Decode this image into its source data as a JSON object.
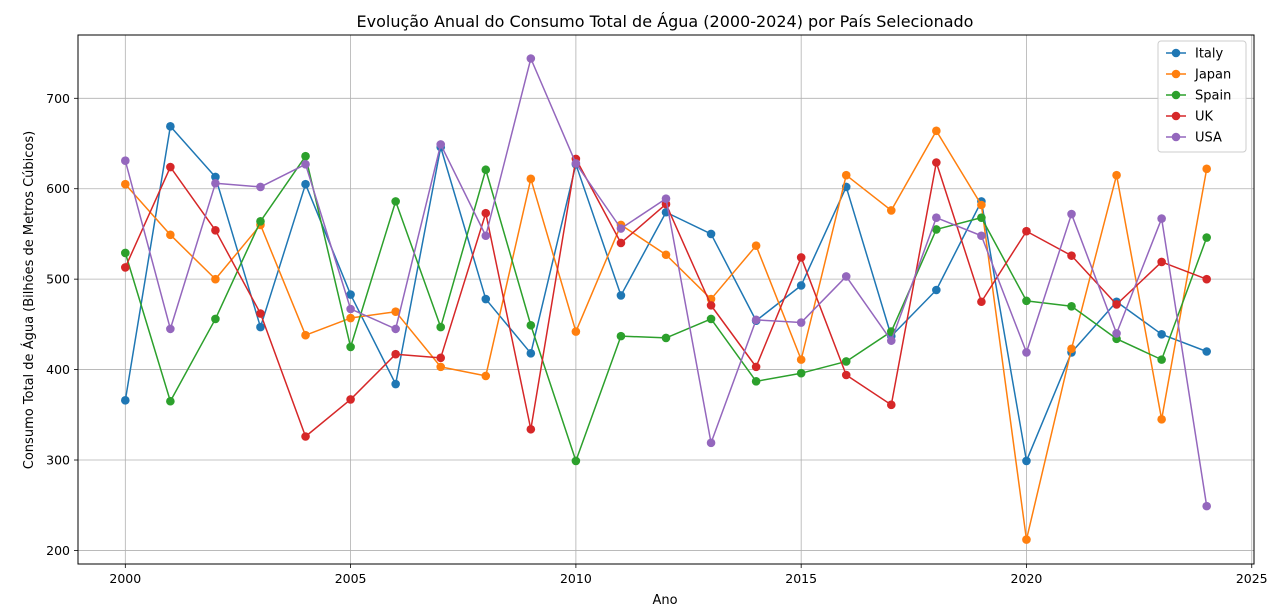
{
  "chart_data": {
    "type": "line",
    "title": "Evolução Anual do Consumo Total de Água (2000-2024) por País Selecionado",
    "xlabel": "Ano",
    "ylabel": "Consumo Total de Água (Bilhões de Metros Cúbicos)",
    "xlim": [
      1998.95,
      2025.05
    ],
    "ylim": [
      185,
      770
    ],
    "xticks": [
      2000,
      2005,
      2010,
      2015,
      2020,
      2025
    ],
    "yticks": [
      200,
      300,
      400,
      500,
      600,
      700
    ],
    "grid": true,
    "legend_position": "top-right",
    "x": [
      2000,
      2001,
      2002,
      2003,
      2004,
      2005,
      2006,
      2007,
      2008,
      2009,
      2010,
      2011,
      2012,
      2013,
      2014,
      2015,
      2016,
      2017,
      2018,
      2019,
      2020,
      2021,
      2022,
      2023,
      2024
    ],
    "series": [
      {
        "name": "Italy",
        "color": "#1f77b4",
        "values": [
          366,
          669,
          613,
          447,
          605,
          483,
          384,
          646,
          478,
          418,
          627,
          482,
          574,
          550,
          454,
          493,
          602,
          437,
          488,
          586,
          299,
          419,
          475,
          439,
          420
        ]
      },
      {
        "name": "Japan",
        "color": "#ff7f0e",
        "values": [
          605,
          549,
          500,
          560,
          438,
          457,
          464,
          403,
          393,
          611,
          442,
          560,
          527,
          478,
          537,
          411,
          615,
          576,
          664,
          582,
          212,
          423,
          615,
          345,
          622
        ]
      },
      {
        "name": "Spain",
        "color": "#2ca02c",
        "values": [
          529,
          365,
          456,
          564,
          636,
          425,
          586,
          447,
          621,
          449,
          299,
          437,
          435,
          456,
          387,
          396,
          409,
          442,
          555,
          568,
          476,
          470,
          434,
          411,
          546
        ]
      },
      {
        "name": "UK",
        "color": "#d62728",
        "values": [
          513,
          624,
          554,
          462,
          326,
          367,
          417,
          413,
          573,
          334,
          633,
          540,
          583,
          471,
          403,
          524,
          394,
          361,
          629,
          475,
          553,
          526,
          472,
          519,
          500
        ]
      },
      {
        "name": "USA",
        "color": "#9467bd",
        "values": [
          631,
          445,
          606,
          602,
          627,
          467,
          445,
          649,
          548,
          744,
          628,
          556,
          589,
          319,
          455,
          452,
          503,
          432,
          568,
          548,
          419,
          572,
          440,
          567,
          249
        ]
      }
    ]
  }
}
